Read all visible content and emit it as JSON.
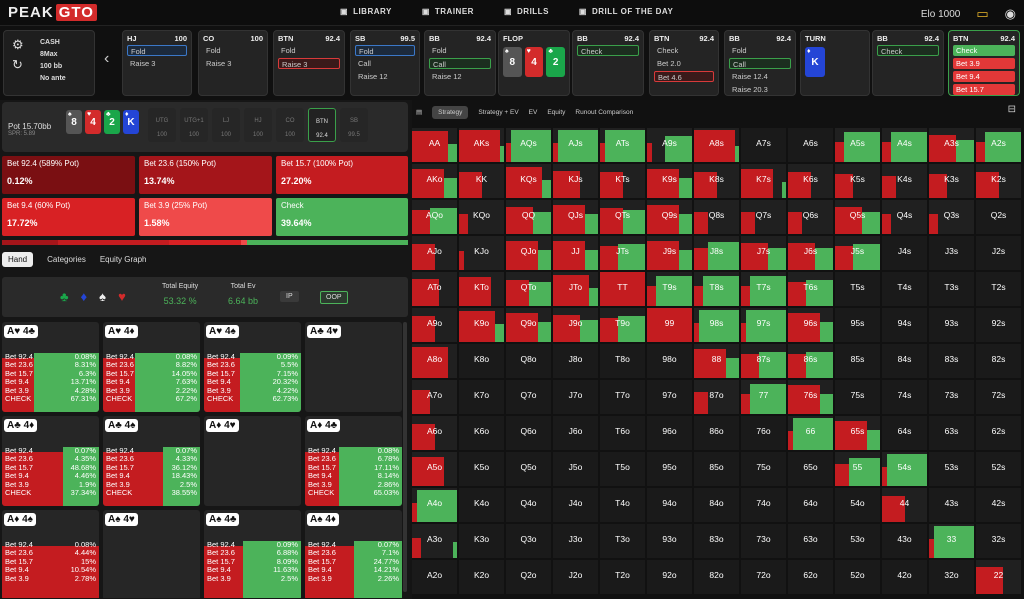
{
  "logo": {
    "a": "PEAK",
    "b": "GTO"
  },
  "nav": [
    {
      "icon": "library-icon",
      "label": "LIBRARY"
    },
    {
      "icon": "trainer-icon",
      "label": "TRAINER"
    },
    {
      "icon": "drills-icon",
      "label": "DRILLS"
    },
    {
      "icon": "drill-of-the-day-icon",
      "label": "DRILL OF THE DAY"
    }
  ],
  "elo": "Elo 1000",
  "game": {
    "type": "CASH",
    "players": "8Max",
    "stack": "100 bb",
    "ante": "No ante"
  },
  "actions": [
    {
      "pos": "HJ",
      "stack": "100",
      "opts": [
        {
          "t": "Fold",
          "s": "sb"
        },
        {
          "t": "Raise 3",
          "s": ""
        }
      ]
    },
    {
      "pos": "CO",
      "stack": "100",
      "opts": [
        {
          "t": "Fold",
          "s": ""
        },
        {
          "t": "Raise 3",
          "s": ""
        }
      ]
    },
    {
      "pos": "BTN",
      "stack": "92.4",
      "opts": [
        {
          "t": "Fold",
          "s": ""
        },
        {
          "t": "Raise 3",
          "s": "sr"
        }
      ]
    },
    {
      "pos": "SB",
      "stack": "99.5",
      "opts": [
        {
          "t": "Fold",
          "s": "sb"
        },
        {
          "t": "Call",
          "s": ""
        },
        {
          "t": "Raise 12",
          "s": ""
        }
      ]
    },
    {
      "pos": "BB",
      "stack": "92.4",
      "opts": [
        {
          "t": "Fold",
          "s": ""
        },
        {
          "t": "Call",
          "s": "sg"
        },
        {
          "t": "Raise 12",
          "s": ""
        }
      ]
    },
    {
      "pos": "BB",
      "stack": "92.4",
      "opts": [
        {
          "t": "Check",
          "s": "sg"
        }
      ]
    },
    {
      "pos": "BTN",
      "stack": "92.4",
      "opts": [
        {
          "t": "Check",
          "s": ""
        },
        {
          "t": "Bet 2.0",
          "s": ""
        },
        {
          "t": "Bet 4.6",
          "s": "sr"
        }
      ]
    },
    {
      "pos": "BB",
      "stack": "92.4",
      "opts": [
        {
          "t": "Fold",
          "s": ""
        },
        {
          "t": "Call",
          "s": "sg"
        },
        {
          "t": "Raise 12.4",
          "s": ""
        },
        {
          "t": "Raise 20.3",
          "s": ""
        }
      ]
    },
    {
      "pos": "BB",
      "stack": "92.4",
      "opts": [
        {
          "t": "Check",
          "s": "sg"
        }
      ]
    },
    {
      "pos": "BTN",
      "stack": "92.4",
      "opts": [
        {
          "t": "Check",
          "s": "gf"
        },
        {
          "t": "Bet 3.9",
          "s": "rf"
        },
        {
          "t": "Bet 9.4",
          "s": "rf"
        },
        {
          "t": "Bet 15.7",
          "s": "rf"
        }
      ]
    }
  ],
  "flop": {
    "label": "FLOP",
    "cards": [
      {
        "r": "8",
        "c": "#555",
        "s": "♠"
      },
      {
        "r": "4",
        "c": "#d32b2b",
        "s": "♥"
      },
      {
        "r": "2",
        "c": "#1aa64a",
        "s": "♣"
      }
    ]
  },
  "turn": {
    "label": "TURN",
    "cards": [
      {
        "r": "K",
        "c": "#2445d6",
        "s": "♦"
      }
    ]
  },
  "pot": {
    "label": "Pot",
    "value": "15.70bb",
    "spr": "SPR: 5.89",
    "board": [
      {
        "r": "8",
        "c": "#555",
        "s": "♠"
      },
      {
        "r": "4",
        "c": "#d32b2b",
        "s": "♥"
      },
      {
        "r": "2",
        "c": "#1aa64a",
        "s": "♣"
      },
      {
        "r": "K",
        "c": "#2445d6",
        "s": "♦"
      }
    ],
    "seats": [
      {
        "p": "UTG",
        "v": "100"
      },
      {
        "p": "UTG+1",
        "v": "100"
      },
      {
        "p": "LJ",
        "v": "100"
      },
      {
        "p": "HJ",
        "v": "100"
      },
      {
        "p": "CO",
        "v": "100"
      },
      {
        "p": "BTN",
        "v": "92.4"
      },
      {
        "p": "SB",
        "v": "99.5"
      }
    ]
  },
  "bets": [
    {
      "label": "Bet 92.4 (589% Pot)",
      "pct": "0.12%",
      "bg": "#7a0f12"
    },
    {
      "label": "Bet 23.6 (150% Pot)",
      "pct": "13.74%",
      "bg": "#a4151a"
    },
    {
      "label": "Bet 15.7 (100% Pot)",
      "pct": "27.20%",
      "bg": "#c41c20"
    },
    {
      "label": "Bet 9.4 (60% Pot)",
      "pct": "17.72%",
      "bg": "#d82124"
    },
    {
      "label": "Bet 3.9 (25% Pot)",
      "pct": "1.58%",
      "bg": "#ef4a4a"
    },
    {
      "label": "Check",
      "pct": "39.64%",
      "bg": "#4cb35a"
    }
  ],
  "freq": [
    0.12,
    13.74,
    27.2,
    17.72,
    1.58,
    39.64
  ],
  "tabs": [
    "Hand",
    "Categories",
    "Equity Graph"
  ],
  "equity": {
    "suits": [
      "♣",
      "♦",
      "♠",
      "♥"
    ],
    "te_label": "Total Equity",
    "te": "53.32 %",
    "ev_label": "Total Ev",
    "ev": "6.64 bb",
    "ip": "IP",
    "oop": "OOP"
  },
  "hands": [
    {
      "h": "A♥ 4♣",
      "rows": [
        [
          "Bet 92.4",
          "0.08%"
        ],
        [
          "Bet 23.6",
          "8.31%"
        ],
        [
          "Bet 15.7",
          "6.3%"
        ],
        [
          "Bet 9.4",
          "13.71%"
        ],
        [
          "Bet 3.9",
          "4.28%"
        ],
        [
          "CHECK",
          "67.31%"
        ]
      ],
      "check": 67.31
    },
    {
      "h": "A♥ 4♦",
      "rows": [
        [
          "Bet 92.4",
          "0.08%"
        ],
        [
          "Bet 23.6",
          "8.82%"
        ],
        [
          "Bet 15.7",
          "14.05%"
        ],
        [
          "Bet 9.4",
          "7.63%"
        ],
        [
          "Bet 3.9",
          "2.22%"
        ],
        [
          "CHECK",
          "67.2%"
        ]
      ],
      "check": 67.2
    },
    {
      "h": "A♥ 4♠",
      "rows": [
        [
          "Bet 92.4",
          "0.09%"
        ],
        [
          "Bet 23.6",
          "5.5%"
        ],
        [
          "Bet 15.7",
          "7.15%"
        ],
        [
          "Bet 9.4",
          "20.32%"
        ],
        [
          "Bet 3.9",
          "4.22%"
        ],
        [
          "CHECK",
          "62.73%"
        ]
      ],
      "check": 62.73
    },
    {
      "h": "A♣ 4♥",
      "rows": [],
      "check": 0
    },
    {
      "h": "A♣ 4♦",
      "rows": [
        [
          "Bet 92.4",
          "0.07%"
        ],
        [
          "Bet 23.6",
          "4.35%"
        ],
        [
          "Bet 15.7",
          "48.68%"
        ],
        [
          "Bet 9.4",
          "4.46%"
        ],
        [
          "Bet 3.9",
          "1.9%"
        ],
        [
          "CHECK",
          "37.34%"
        ]
      ],
      "check": 37.34
    },
    {
      "h": "A♣ 4♠",
      "rows": [
        [
          "Bet 92.4",
          "0.07%"
        ],
        [
          "Bet 23.6",
          "4.33%"
        ],
        [
          "Bet 15.7",
          "36.12%"
        ],
        [
          "Bet 9.4",
          "18.43%"
        ],
        [
          "Bet 3.9",
          "2.5%"
        ],
        [
          "CHECK",
          "38.55%"
        ]
      ],
      "check": 38.55
    },
    {
      "h": "A♦ 4♥",
      "rows": [],
      "check": 0
    },
    {
      "h": "A♦ 4♣",
      "rows": [
        [
          "Bet 92.4",
          "0.08%"
        ],
        [
          "Bet 23.6",
          "6.78%"
        ],
        [
          "Bet 15.7",
          "17.11%"
        ],
        [
          "Bet 9.4",
          "8.14%"
        ],
        [
          "Bet 3.9",
          "2.86%"
        ],
        [
          "CHECK",
          "65.03%"
        ]
      ],
      "check": 65.03
    },
    {
      "h": "A♦ 4♠",
      "rows": [
        [
          "Bet 92.4",
          "0.08%"
        ],
        [
          "Bet 23.6",
          "4.44%"
        ],
        [
          "Bet 15.7",
          "15%"
        ],
        [
          "Bet 9.4",
          "10.54%"
        ],
        [
          "Bet 3.9",
          "2.78%"
        ]
      ],
      "check": 0
    },
    {
      "h": "A♠ 4♥",
      "rows": [],
      "check": 0
    },
    {
      "h": "A♠ 4♣",
      "rows": [
        [
          "Bet 92.4",
          "0.09%"
        ],
        [
          "Bet 23.6",
          "6.88%"
        ],
        [
          "Bet 15.7",
          "8.09%"
        ],
        [
          "Bet 9.4",
          "11.63%"
        ],
        [
          "Bet 3.9",
          "2.5%"
        ]
      ],
      "check": 60
    },
    {
      "h": "A♠ 4♦",
      "rows": [
        [
          "Bet 92.4",
          "0.07%"
        ],
        [
          "Bet 23.6",
          "7.1%"
        ],
        [
          "Bet 15.7",
          "24.77%"
        ],
        [
          "Bet 9.4",
          "14.21%"
        ],
        [
          "Bet 3.9",
          "2.26%"
        ]
      ],
      "check": 50
    }
  ],
  "rtabs": [
    "Strategy",
    "Strategy + EV",
    "EV",
    "Equity",
    "Runout Comparison"
  ],
  "matrix_ranks": [
    "A",
    "K",
    "Q",
    "J",
    "T",
    "9",
    "8",
    "7",
    "6",
    "5",
    "4",
    "3",
    "2"
  ],
  "matrix_green": [
    [
      0.2,
      0.1,
      0.9,
      0.9,
      0.9,
      0.6,
      0.1,
      0,
      0,
      0.8,
      0.8,
      0.4,
      0.8
    ],
    [
      0.3,
      0,
      0.2,
      0,
      0,
      0.3,
      0,
      0.1,
      0,
      0,
      0,
      0,
      0
    ],
    [
      0.6,
      0,
      0.4,
      0.3,
      0.5,
      0.3,
      0,
      0,
      0,
      0.4,
      0,
      0,
      0
    ],
    [
      0,
      0,
      0.3,
      0.3,
      0.6,
      0.3,
      0.7,
      0.4,
      0.4,
      0.6,
      0,
      0,
      0
    ],
    [
      0,
      0,
      0.5,
      0.2,
      0,
      0.8,
      0.8,
      0.8,
      0.6,
      0,
      0,
      0,
      0
    ],
    [
      0,
      0.2,
      0.3,
      0.4,
      0.6,
      0,
      0.9,
      0.9,
      0.3,
      0,
      0,
      0,
      0
    ],
    [
      0,
      0,
      0,
      0,
      0,
      0,
      0.3,
      0.6,
      0.6,
      0,
      0,
      0,
      0
    ],
    [
      0,
      0,
      0,
      0,
      0,
      0,
      0,
      0.8,
      0.3,
      0,
      0,
      0,
      0
    ],
    [
      0,
      0,
      0,
      0,
      0,
      0,
      0,
      0,
      0.9,
      0.3,
      0,
      0,
      0
    ],
    [
      0,
      0,
      0,
      0,
      0,
      0,
      0,
      0,
      0,
      0.7,
      0.9,
      0,
      0
    ],
    [
      0.9,
      0,
      0,
      0,
      0,
      0,
      0,
      0,
      0,
      0,
      0,
      0,
      0
    ],
    [
      0.1,
      0,
      0,
      0,
      0,
      0,
      0,
      0,
      0,
      0,
      0,
      0.9,
      0
    ],
    [
      0,
      0,
      0,
      0,
      0,
      0,
      0,
      0,
      0,
      0,
      0,
      0,
      0
    ]
  ],
  "matrix_red": [
    [
      0.8,
      0.9,
      0.1,
      0.1,
      0.1,
      0.1,
      0.9,
      0,
      0,
      0.2,
      0.2,
      0.6,
      0.2
    ],
    [
      0.7,
      0.5,
      0.8,
      0.6,
      0.5,
      0.7,
      0.5,
      0.7,
      0.5,
      0.4,
      0.3,
      0.4,
      0.5
    ],
    [
      0.4,
      0.2,
      0.6,
      0.7,
      0.5,
      0.7,
      0.3,
      0.3,
      0.3,
      0.6,
      0.2,
      0.2,
      0
    ],
    [
      0.5,
      0.1,
      0.7,
      0.7,
      0.4,
      0.7,
      0.3,
      0.6,
      0.6,
      0.4,
      0,
      0,
      0
    ],
    [
      0.6,
      0.7,
      0.5,
      0.8,
      1,
      0.2,
      0.2,
      0.2,
      0.4,
      0,
      0,
      0,
      0
    ],
    [
      0.5,
      0.8,
      0.7,
      0.6,
      0.4,
      1,
      0.1,
      0.1,
      0.7,
      0,
      0,
      0,
      0
    ],
    [
      0.8,
      0,
      0,
      0,
      0,
      0,
      0.7,
      0.4,
      0.4,
      0,
      0,
      0,
      0
    ],
    [
      0.4,
      0,
      0,
      0,
      0,
      0,
      0.3,
      0.2,
      0.7,
      0,
      0,
      0,
      0
    ],
    [
      0.5,
      0,
      0,
      0,
      0,
      0,
      0,
      0,
      0.1,
      0.7,
      0,
      0,
      0
    ],
    [
      0.7,
      0,
      0,
      0,
      0,
      0,
      0,
      0,
      0,
      0.3,
      0.1,
      0,
      0
    ],
    [
      0.1,
      0,
      0,
      0,
      0,
      0,
      0,
      0,
      0,
      0,
      0.5,
      0,
      0
    ],
    [
      0.2,
      0,
      0,
      0,
      0,
      0,
      0,
      0,
      0,
      0,
      0,
      0.1,
      0
    ],
    [
      0,
      0,
      0,
      0,
      0,
      0,
      0,
      0,
      0,
      0,
      0,
      0,
      0.6
    ]
  ]
}
